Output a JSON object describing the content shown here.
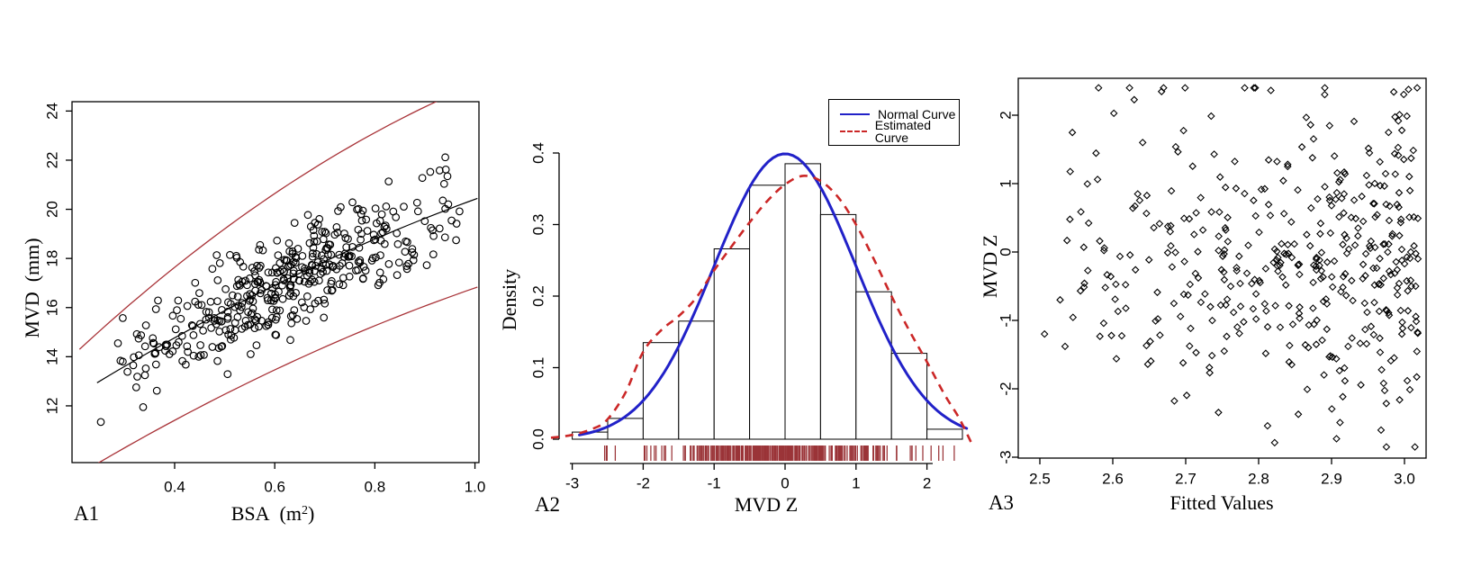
{
  "labels": {
    "a1_tag": "A1",
    "a1_xlabel_main": "BSA  (m",
    "a1_xlabel_sup": "2",
    "a1_xlabel_close": ")",
    "a1_ylabel": "MVD  (mm)",
    "a2_tag": "A2",
    "a2_xlabel": "MVD Z",
    "a2_ylabel": "Density",
    "a3_tag": "A3",
    "a3_xlabel": "Fitted Values",
    "a3_ylabel": "MVD Z",
    "legend_normal": "Normal Curve",
    "legend_estimated": "Estimated Curve"
  },
  "colors": {
    "foreground": "#000000",
    "band_red": "#A93439",
    "normal_blue": "#2121C8",
    "estimated_red": "#CB2727",
    "rug_red": "#9B3438",
    "background": "#FFFFFF"
  },
  "chart_data": [
    {
      "id": "A1",
      "type": "scatter",
      "xlabel": "BSA (m2)",
      "ylabel": "MVD (mm)",
      "xlim": [
        0.195,
        1.008
      ],
      "ylim": [
        9.69,
        24.38
      ],
      "xticks": [
        "0.4",
        "0.6",
        "0.8",
        "1.0"
      ],
      "yticks": [
        "12",
        "14",
        "16",
        "18",
        "20",
        "22",
        "24"
      ],
      "marker": "open-circle",
      "n_points": 425,
      "point_gen": {
        "seed": 11,
        "x_min": 0.24,
        "x_span": 0.76,
        "noise": 1.75,
        "y_clamp": [
          10.0,
          24.2
        ]
      },
      "curves": [
        {
          "name": "fitted-center",
          "color": "#000000",
          "width": 1.2,
          "dash": null,
          "quad": [
            9.73,
            13.88,
            -3.2
          ],
          "x_range": [
            0.245,
            1.005
          ]
        },
        {
          "name": "upper-limit",
          "color": "#A93439",
          "width": 1.3,
          "dash": null,
          "quad": [
            10.07,
            21.53,
            -6.52
          ],
          "x_range": [
            0.21,
            1.005
          ]
        },
        {
          "name": "lower-limit",
          "color": "#A93439",
          "width": 1.3,
          "dash": null,
          "quad": [
            6.54,
            13.46,
            -3.2
          ],
          "x_range": [
            0.245,
            1.005
          ]
        }
      ]
    },
    {
      "id": "A2",
      "type": "histogram",
      "xlabel": "MVD Z",
      "ylabel": "Density",
      "bin_start": -3,
      "bin_width": 0.5,
      "densities": [
        0.01,
        0.029,
        0.135,
        0.165,
        0.266,
        0.355,
        0.385,
        0.314,
        0.206,
        0.12,
        0.014
      ],
      "xticks": [
        "-3",
        "-2",
        "-1",
        "0",
        "1",
        "2"
      ],
      "yticks": [
        "0.0",
        "0.1",
        "0.2",
        "0.3",
        "0.4"
      ],
      "ylim": [
        0,
        0.4
      ],
      "normal_curve": {
        "label": "Normal Curve",
        "color": "#2121C8",
        "mean": 0,
        "sd": 1,
        "x_range": [
          -2.9,
          2.56
        ],
        "width": 3
      },
      "estimated_curve": {
        "label": "Estimated Curve",
        "color": "#CB2727",
        "width": 2.6,
        "dash": [
          9,
          7
        ],
        "points": [
          [
            -3.3,
            0.002
          ],
          [
            -3.0,
            0.006
          ],
          [
            -2.7,
            0.015
          ],
          [
            -2.5,
            0.028
          ],
          [
            -2.25,
            0.065
          ],
          [
            -2.0,
            0.122
          ],
          [
            -1.75,
            0.152
          ],
          [
            -1.5,
            0.172
          ],
          [
            -1.25,
            0.198
          ],
          [
            -1.0,
            0.236
          ],
          [
            -0.75,
            0.27
          ],
          [
            -0.5,
            0.303
          ],
          [
            -0.25,
            0.333
          ],
          [
            0.0,
            0.356
          ],
          [
            0.25,
            0.368
          ],
          [
            0.5,
            0.361
          ],
          [
            0.75,
            0.338
          ],
          [
            1.0,
            0.3
          ],
          [
            1.25,
            0.252
          ],
          [
            1.5,
            0.2
          ],
          [
            1.75,
            0.152
          ],
          [
            2.0,
            0.108
          ],
          [
            2.25,
            0.062
          ],
          [
            2.45,
            0.03
          ],
          [
            2.62,
            -0.004
          ]
        ]
      },
      "rug": {
        "color": "#9B3438",
        "n": 300,
        "seed": 5,
        "range": [
          -2.85,
          2.45
        ],
        "spread": 1.7
      },
      "legend": {
        "position": "top-right",
        "entries": [
          {
            "label": "Normal Curve",
            "color": "#2121C8",
            "style": "solid"
          },
          {
            "label": "Estimated Curve",
            "color": "#CB2727",
            "style": "dashed"
          }
        ]
      }
    },
    {
      "id": "A3",
      "type": "scatter",
      "xlabel": "Fitted Values",
      "ylabel": "MVD Z",
      "xlim": [
        2.47,
        3.03
      ],
      "ylim": [
        -3.01,
        2.54
      ],
      "xticks": [
        "2.5",
        "2.6",
        "2.7",
        "2.8",
        "2.9",
        "3.0"
      ],
      "yticks": [
        "-3",
        "-2",
        "-1",
        "0",
        "1",
        "2"
      ],
      "marker": "open-diamond",
      "n_points": 430,
      "point_gen": {
        "seed": 23,
        "x_min": 2.49,
        "x_span": 0.53,
        "noise": 1.95,
        "y_clamp": [
          -2.85,
          2.4
        ]
      }
    }
  ]
}
